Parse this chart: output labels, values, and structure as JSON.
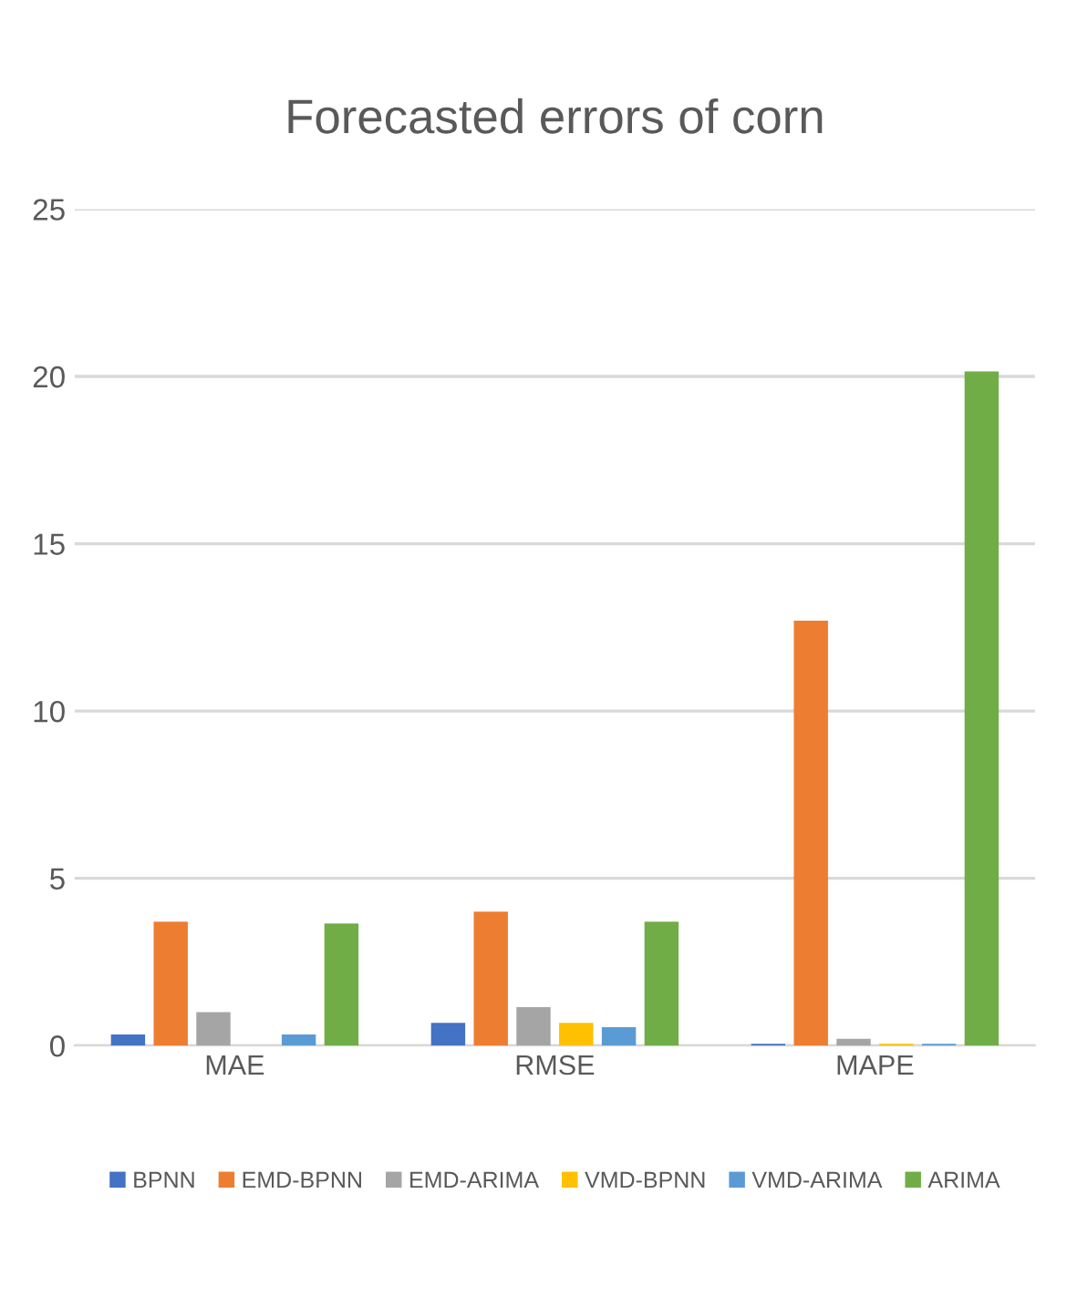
{
  "chart_data": {
    "type": "bar",
    "title": "Forecasted errors of corn",
    "categories": [
      "MAE",
      "RMSE",
      "MAPE"
    ],
    "series": [
      {
        "name": "BPNN",
        "color": "#4472c4",
        "values": [
          0.33,
          0.68,
          0.05
        ]
      },
      {
        "name": "EMD-BPNN",
        "color": "#ed7d31",
        "values": [
          3.7,
          4.0,
          12.7
        ]
      },
      {
        "name": "EMD-ARIMA",
        "color": "#a5a5a5",
        "values": [
          1.0,
          1.15,
          0.2
        ]
      },
      {
        "name": "VMD-BPNN",
        "color": "#ffc000",
        "values": [
          0,
          0.68,
          0.05
        ]
      },
      {
        "name": "VMD-ARIMA",
        "color": "#5b9bd5",
        "values": [
          0.33,
          0.55,
          0.05
        ]
      },
      {
        "name": "ARIMA",
        "color": "#70ad47",
        "values": [
          3.65,
          3.7,
          20.15
        ]
      }
    ],
    "ylim": [
      0,
      25
    ],
    "yticks": [
      0,
      5,
      10,
      15,
      20,
      25
    ],
    "grid": "y",
    "legend": "bottom"
  }
}
